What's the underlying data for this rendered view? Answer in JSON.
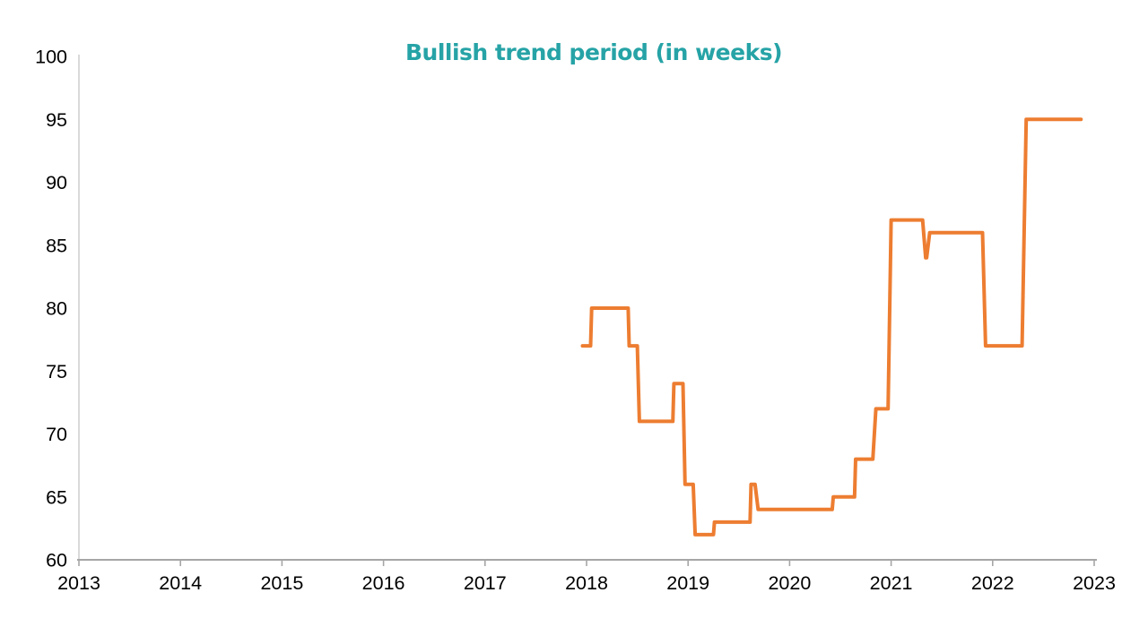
{
  "page": {
    "background": "#FFFFFF"
  },
  "chart_data": {
    "type": "line",
    "title": "Bullish trend period (in weeks)",
    "subtitle": "",
    "xlabel": "",
    "ylabel": "",
    "title_color": "#26A3A6",
    "line_color": "#ED7D31",
    "axis_text_color": "#000000",
    "y_spine_color": "#D9D9D9",
    "x_spine_color": "#A6A6A6",
    "xlim": [
      2013,
      2023
    ],
    "ylim": [
      60,
      100
    ],
    "x_ticks": [
      2013,
      2014,
      2015,
      2016,
      2017,
      2018,
      2019,
      2020,
      2021,
      2022,
      2023
    ],
    "y_ticks": [
      60,
      65,
      70,
      75,
      80,
      85,
      90,
      95,
      100
    ],
    "grid": false,
    "legend_position": "none",
    "line_style": "step",
    "series": [
      {
        "name": "Bullish trend period (weeks)",
        "step_segments": [
          {
            "from": 2017.96,
            "to": 2018.04,
            "value": 77
          },
          {
            "from": 2018.05,
            "to": 2018.41,
            "value": 80
          },
          {
            "from": 2018.42,
            "to": 2018.5,
            "value": 77
          },
          {
            "from": 2018.52,
            "to": 2018.85,
            "value": 71
          },
          {
            "from": 2018.86,
            "to": 2018.95,
            "value": 74
          },
          {
            "from": 2018.97,
            "to": 2019.05,
            "value": 66
          },
          {
            "from": 2019.07,
            "to": 2019.25,
            "value": 62
          },
          {
            "from": 2019.26,
            "to": 2019.61,
            "value": 63
          },
          {
            "from": 2019.62,
            "to": 2019.66,
            "value": 66
          },
          {
            "from": 2019.69,
            "to": 2020.42,
            "value": 64
          },
          {
            "from": 2020.43,
            "to": 2020.64,
            "value": 65
          },
          {
            "from": 2020.65,
            "to": 2020.82,
            "value": 68
          },
          {
            "from": 2020.85,
            "to": 2020.97,
            "value": 72
          },
          {
            "from": 2021.0,
            "to": 2021.31,
            "value": 87
          },
          {
            "from": 2021.34,
            "to": 2021.35,
            "value": 84
          },
          {
            "from": 2021.38,
            "to": 2021.9,
            "value": 86
          },
          {
            "from": 2021.93,
            "to": 2022.29,
            "value": 77
          },
          {
            "from": 2022.33,
            "to": 2022.87,
            "value": 95
          }
        ]
      }
    ]
  }
}
